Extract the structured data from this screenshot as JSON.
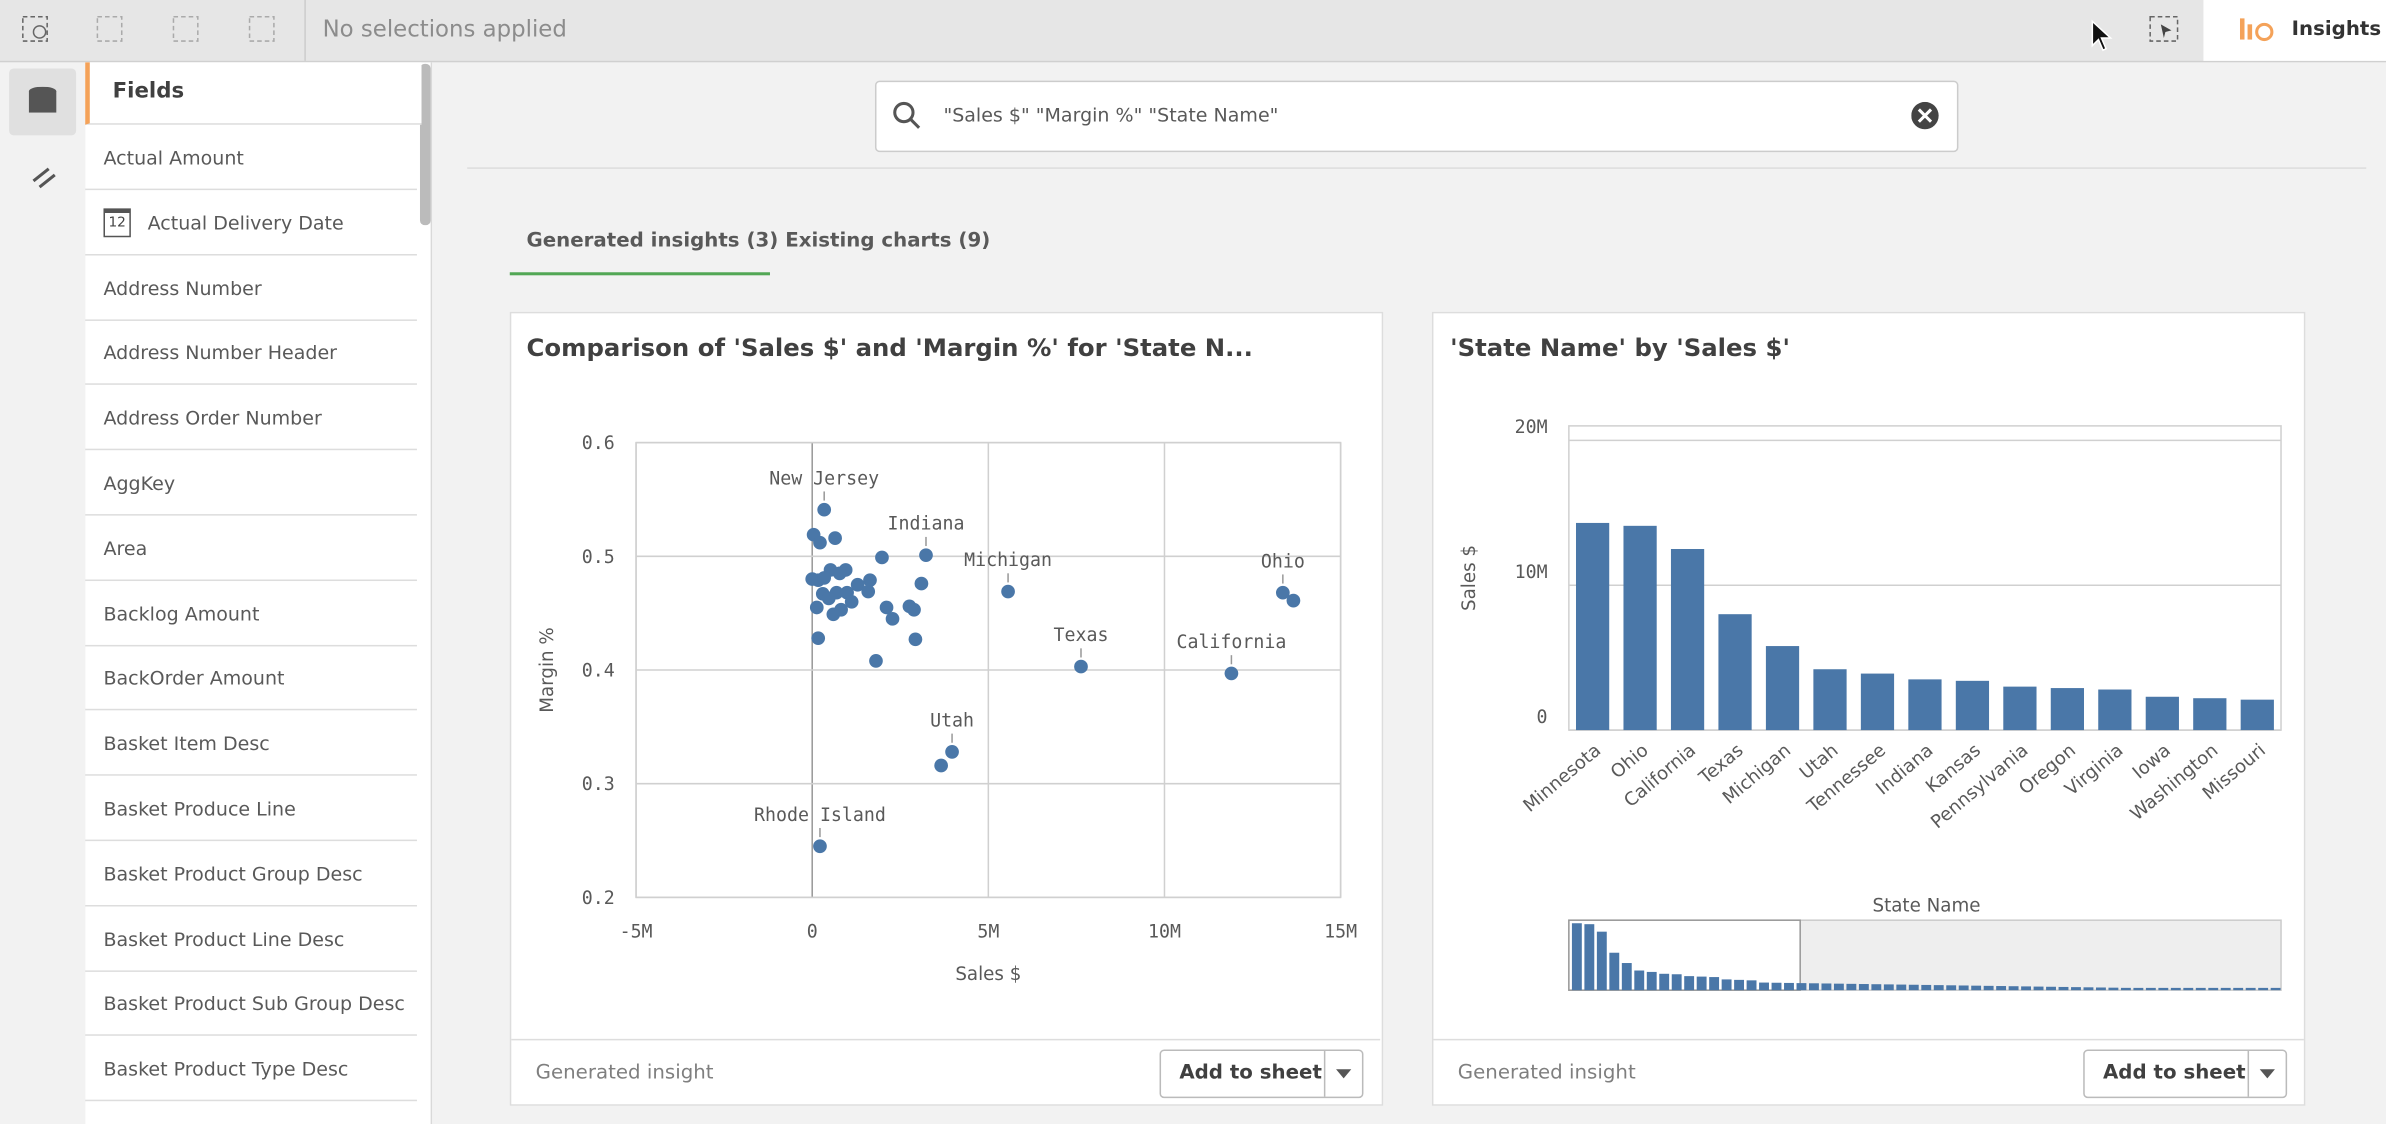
{
  "toolbar": {
    "selection_status": "No selections applied",
    "app_button": "Insights"
  },
  "sidebar": {
    "title": "Fields",
    "date_icon": "12",
    "fields": [
      "Actual Amount",
      "Actual Delivery Date",
      "Address Number",
      "Address Number Header",
      "Address Order Number",
      "AggKey",
      "Area",
      "Backlog Amount",
      "BackOrder Amount",
      "Basket Item Desc",
      "Basket Produce Line",
      "Basket Product Group Desc",
      "Basket Product Line Desc",
      "Basket Product Sub Group Desc",
      "Basket Product Type Desc"
    ]
  },
  "search": {
    "query": "\"Sales $\" \"Margin %\" \"State Name\""
  },
  "tabs": [
    "Generated insights (3)",
    "Existing charts (9)"
  ],
  "cards": [
    {
      "title": "Comparison of 'Sales $' and 'Margin %' for 'State N...",
      "footer": "Generated insight",
      "button": "Add to sheet",
      "chart_data": {
        "type": "scatter",
        "x_label": "Sales $",
        "y_label": "Margin %",
        "color": "#4a77a8",
        "grid": true,
        "xlim": [
          -5000000,
          15000000
        ],
        "ylim": [
          0.2,
          0.6
        ],
        "xticks": [
          {
            "value": -5000000,
            "label": "-5M"
          },
          0,
          {
            "value": 5000000,
            "label": "5M"
          },
          {
            "value": 10000000,
            "label": "10M"
          },
          {
            "value": 15000000,
            "label": "15M"
          }
        ],
        "yticks": [
          0.2,
          0.3,
          0.4,
          0.5,
          0.6
        ],
        "labels": [
          "New Jersey",
          "Indiana",
          "Michigan",
          "Ohio",
          null,
          "Texas",
          "California",
          "Utah",
          null,
          "Rhode Island",
          null,
          null,
          null,
          null,
          null,
          null,
          null,
          null,
          null,
          null,
          null,
          null,
          null,
          null,
          null,
          null,
          null,
          null,
          null,
          null,
          null,
          null,
          null,
          null,
          null,
          null,
          null,
          null,
          null
        ],
        "x": [
          340000,
          3230000,
          5560000,
          13360000,
          13660000,
          7630000,
          11900000,
          3970000,
          3660000,
          220000,
          40000,
          220000,
          650000,
          0,
          170000,
          520000,
          340000,
          950000,
          780000,
          300000,
          690000,
          990000,
          470000,
          130000,
          600000,
          820000,
          1120000,
          1290000,
          1640000,
          1590000,
          1980000,
          2110000,
          2280000,
          2760000,
          2890000,
          3100000,
          2930000,
          170000,
          1810000
        ],
        "y": [
          0.541,
          0.501,
          0.469,
          0.468,
          0.461,
          0.403,
          0.397,
          0.328,
          0.316,
          0.245,
          0.519,
          0.512,
          0.516,
          0.48,
          0.479,
          0.488,
          0.481,
          0.488,
          0.485,
          0.467,
          0.468,
          0.468,
          0.463,
          0.455,
          0.449,
          0.453,
          0.46,
          0.475,
          0.479,
          0.469,
          0.499,
          0.455,
          0.445,
          0.456,
          0.453,
          0.476,
          0.427,
          0.428,
          0.408
        ]
      }
    },
    {
      "title": "'State Name' by 'Sales $'",
      "footer": "Generated insight",
      "button": "Add to sheet",
      "chart_data": {
        "type": "bar",
        "x_label": "State Name",
        "y_label": "Sales $",
        "color": "#4a77a8",
        "grid": true,
        "ylim": [
          0,
          21000000
        ],
        "yticks": [
          0,
          {
            "value": 10000000,
            "label": "10M"
          },
          {
            "value": 20000000,
            "label": "20M"
          }
        ],
        "categories": [
          "Minnesota",
          "Ohio",
          "California",
          "Texas",
          "Michigan",
          "Utah",
          "Tennessee",
          "Indiana",
          "Kansas",
          "Pennsylvania",
          "Oregon",
          "Virginia",
          "Iowa",
          "Washington",
          "Missouri"
        ],
        "values": [
          14300000,
          14100000,
          12500000,
          8000000,
          5800000,
          4200000,
          3900000,
          3500000,
          3400000,
          3000000,
          2900000,
          2800000,
          2300000,
          2200000,
          2100000
        ]
      }
    }
  ]
}
